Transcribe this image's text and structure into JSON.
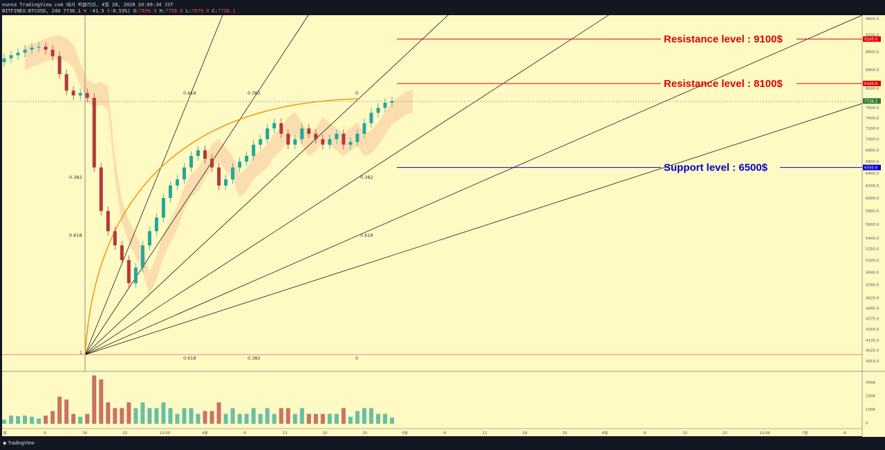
{
  "header": {
    "line1": "eunsa TradingView.com 에서 퍼블리쉬, 4월 28, 2020 20:09:34 JST",
    "symbol": "BITFINEX:BTCUSD, 240",
    "last": "7736.1",
    "change_arrow": "▼",
    "change": "-41.5 (-0.53%)",
    "ohlc": {
      "o_label": "O:",
      "o": "7699.9",
      "h_label": "H:",
      "h": "7758.0",
      "l_label": "L:",
      "l": "7679.9",
      "c_label": "C:",
      "c": "7736.1"
    }
  },
  "footer": {
    "brand": "TradingView"
  },
  "colors": {
    "background": "#fff9c4",
    "resistance": "#e00000",
    "support": "#0000cc",
    "arc": "#f39200",
    "up": "#26a69a",
    "down": "#b23a3a"
  },
  "chart_data": {
    "type": "candlestick",
    "symbol": "BITFINEX:BTCUSD",
    "interval": "240",
    "y_axis": {
      "scale": "log",
      "ticks": [
        9600.0,
        9200.0,
        8800.0,
        8400.0,
        8000.0,
        7600.0,
        7400.0,
        7200.0,
        7000.0,
        6800.0,
        6600.0,
        6400.0,
        6200.0,
        6000.0,
        5800.0,
        5600.0,
        5400.0,
        5250.0,
        5100.0,
        4940.0,
        4780.0,
        4620.0,
        4495.0,
        4375.0,
        4255.0,
        4135.0,
        4025.0,
        3915.0
      ]
    },
    "x_axis": {
      "ticks": [
        "월",
        "9",
        "16",
        "23",
        "13:00",
        "4월",
        "6",
        "13",
        "20",
        "25",
        "5월",
        "6",
        "11",
        "18",
        "25",
        "6월",
        "8",
        "15",
        "22",
        "13:00",
        "7월",
        "6"
      ]
    },
    "price_labels": [
      "9100.0",
      "8100.0",
      "7736.1",
      "6500.0"
    ],
    "levels": [
      {
        "name": "Resistance level : 9100$",
        "price": 9100,
        "kind": "resistance"
      },
      {
        "name": "Resistance level : 8100$",
        "price": 8100,
        "kind": "resistance"
      },
      {
        "name": "Support level : 6500$",
        "price": 6500,
        "kind": "support"
      }
    ],
    "current_price": 7736.1,
    "fib_fan_labels": [
      "0.618",
      "0.382",
      "0",
      "0.382",
      "0.618",
      "1",
      "0.618",
      "0.382",
      "0"
    ],
    "volume_axis": {
      "ticks": [
        "300K",
        "200K",
        "100K",
        "0"
      ]
    },
    "candles_approx_close": [
      8650,
      8720,
      8780,
      8850,
      8900,
      8920,
      8850,
      8700,
      8300,
      7950,
      7850,
      7900,
      7800,
      6500,
      5800,
      5500,
      5300,
      5100,
      4800,
      5000,
      5300,
      5500,
      5700,
      6000,
      6200,
      6300,
      6500,
      6700,
      6800,
      6650,
      6500,
      6200,
      6300,
      6500,
      6600,
      6700,
      6900,
      7000,
      7200,
      7300,
      7100,
      6900,
      7000,
      7200,
      7100,
      7000,
      6900,
      7000,
      7100,
      6900,
      6950,
      7100,
      7300,
      7500,
      7600,
      7700,
      7736
    ]
  }
}
